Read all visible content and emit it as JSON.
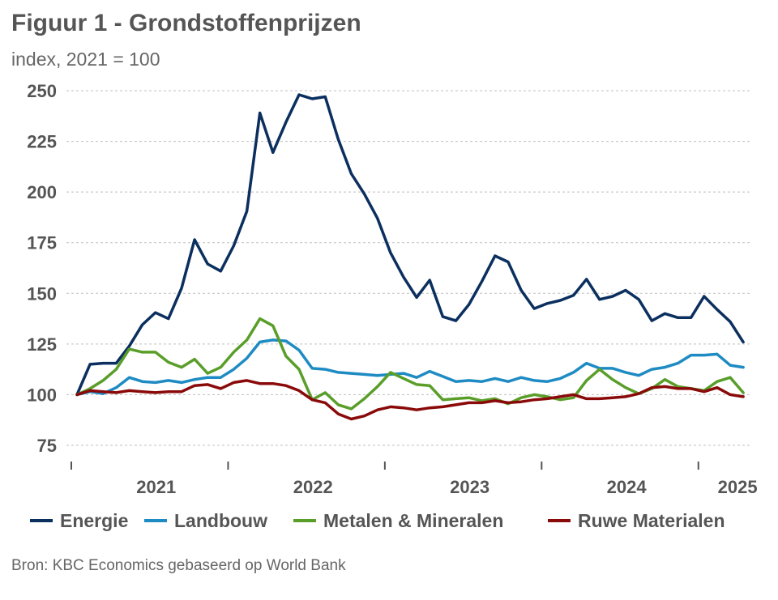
{
  "title": "Figuur 1 - Grondstoffenprijzen",
  "subtitle": "index, 2021 = 100",
  "source": "Bron: KBC Economics gebaseerd op World Bank",
  "chart_data": {
    "type": "line",
    "title": "Figuur 1 - Grondstoffenprijzen",
    "subtitle": "index, 2021 = 100",
    "xlabel": "",
    "ylabel": "",
    "ylim": [
      75,
      250
    ],
    "yticks": [
      "250",
      "225",
      "200",
      "175",
      "150",
      "125",
      "100",
      "75"
    ],
    "xticks": [
      "2021",
      "2022",
      "2023",
      "2024",
      "2025"
    ],
    "grid": "horizontal",
    "legend": "bottom",
    "x": [
      "2020-12",
      "2021-01",
      "2021-02",
      "2021-03",
      "2021-04",
      "2021-05",
      "2021-06",
      "2021-07",
      "2021-08",
      "2021-09",
      "2021-10",
      "2021-11",
      "2021-12",
      "2022-01",
      "2022-02",
      "2022-03",
      "2022-04",
      "2022-05",
      "2022-06",
      "2022-07",
      "2022-08",
      "2022-09",
      "2022-10",
      "2022-11",
      "2022-12",
      "2023-01",
      "2023-02",
      "2023-03",
      "2023-04",
      "2023-05",
      "2023-06",
      "2023-07",
      "2023-08",
      "2023-09",
      "2023-10",
      "2023-11",
      "2023-12",
      "2024-01",
      "2024-02",
      "2024-03",
      "2024-04",
      "2024-05",
      "2024-06",
      "2024-07",
      "2024-08",
      "2024-09",
      "2024-10",
      "2024-11",
      "2024-12",
      "2025-01",
      "2025-02",
      "2025-03"
    ],
    "series": [
      {
        "name": "Energie",
        "color": "#0b2f5e",
        "values": [
          100,
          115,
          115.5,
          115.5,
          124,
          134.5,
          140.5,
          137.5,
          152.5,
          176.5,
          164.5,
          161,
          173.5,
          190.5,
          239,
          219.5,
          234.5,
          248,
          246,
          247,
          226,
          209,
          199,
          187,
          170,
          158,
          148,
          156.5,
          138.5,
          136.5,
          144.5,
          156,
          168.5,
          165.5,
          151.5,
          142.5,
          145,
          146.5,
          149,
          157,
          147,
          148.5,
          151.5,
          147,
          136.5,
          140,
          138,
          138,
          148.5,
          142,
          136,
          126
        ]
      },
      {
        "name": "Landbouw",
        "color": "#1e8bc3",
        "values": [
          100,
          101.5,
          100.5,
          103.5,
          108.5,
          106.5,
          106,
          107,
          106,
          107.5,
          108.5,
          108.5,
          112.5,
          118,
          126,
          127,
          126.5,
          122,
          113,
          112.5,
          111,
          110.5,
          110,
          109.5,
          110,
          110.5,
          108.5,
          111.5,
          109,
          106.5,
          107,
          106.5,
          108,
          106.5,
          108.5,
          107,
          106.5,
          108,
          111,
          115.5,
          113,
          113,
          111,
          109.5,
          112.5,
          113.5,
          115.5,
          119.5,
          119.5,
          120,
          114.5,
          113.5
        ]
      },
      {
        "name": "Metalen & Mineralen",
        "color": "#5a9e2a",
        "values": [
          100,
          103,
          107,
          112.5,
          122.5,
          121,
          121,
          116,
          113.5,
          117.5,
          110.5,
          113.5,
          121,
          127,
          137.5,
          134,
          119,
          112.5,
          97.5,
          101,
          95,
          93,
          98,
          104,
          111,
          108,
          105,
          104.5,
          97.5,
          98,
          98.5,
          97,
          98,
          95.5,
          98.5,
          100,
          99,
          97.5,
          98.5,
          107,
          112.5,
          107.5,
          103.5,
          100.5,
          103,
          107.5,
          104,
          103,
          102,
          106.5,
          108.5,
          101
        ]
      },
      {
        "name": "Ruwe Materialen",
        "color": "#8a0a0a",
        "values": [
          100,
          102,
          101.5,
          101,
          102,
          101.5,
          101,
          101.5,
          101.5,
          104.5,
          105,
          103,
          106,
          107,
          105.5,
          105.5,
          104.5,
          102,
          97.5,
          96,
          90.5,
          88,
          89.5,
          92.5,
          94,
          93.5,
          92.5,
          93.5,
          94,
          95,
          96,
          96,
          97,
          96,
          96.5,
          97.5,
          98,
          99,
          100,
          98,
          98,
          98.5,
          99,
          100.5,
          103.5,
          104,
          103,
          103,
          101.5,
          103.5,
          100,
          99
        ]
      }
    ]
  }
}
